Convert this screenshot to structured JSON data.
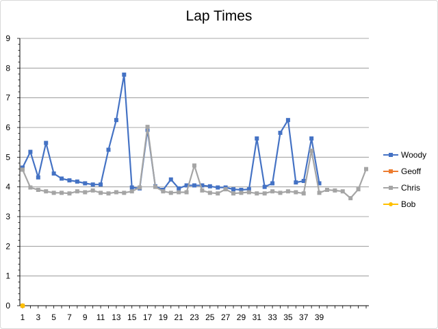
{
  "chart_data": {
    "type": "line",
    "title": "Lap Times",
    "xlabel": "",
    "ylabel": "",
    "ylim": [
      0,
      9
    ],
    "yticks": [
      0,
      1,
      2,
      3,
      4,
      5,
      6,
      7,
      8,
      9
    ],
    "xticks": [
      1,
      3,
      5,
      7,
      9,
      11,
      13,
      15,
      17,
      19,
      21,
      23,
      25,
      27,
      29,
      31,
      33,
      35,
      37,
      39
    ],
    "xrange": [
      1,
      45
    ],
    "grid": "horizontal",
    "legend_position": "right",
    "series": [
      {
        "name": "Woody",
        "color": "#4472C4",
        "marker": "square",
        "values": [
          4.65,
          5.18,
          4.32,
          5.48,
          4.45,
          4.28,
          4.22,
          4.18,
          4.12,
          4.08,
          4.08,
          5.25,
          6.25,
          7.78,
          3.98,
          3.95,
          5.92,
          4.02,
          3.9,
          4.25,
          3.95,
          4.05,
          4.05,
          4.05,
          4.02,
          3.98,
          3.98,
          3.92,
          3.9,
          3.92,
          5.63,
          4.0,
          4.12,
          5.82,
          6.25,
          4.15,
          4.2,
          5.63,
          4.12
        ]
      },
      {
        "name": "Geoff",
        "color": "#ED7D31",
        "marker": "square",
        "values": [
          0
        ]
      },
      {
        "name": "Chris",
        "color": "#A5A5A5",
        "marker": "square",
        "values": [
          4.58,
          3.98,
          3.9,
          3.85,
          3.8,
          3.8,
          3.78,
          3.85,
          3.82,
          3.88,
          3.8,
          3.78,
          3.82,
          3.8,
          3.85,
          3.98,
          6.02,
          4.0,
          3.85,
          3.8,
          3.82,
          3.82,
          4.72,
          3.88,
          3.8,
          3.78,
          3.92,
          3.78,
          3.8,
          3.82,
          3.78,
          3.78,
          3.85,
          3.8,
          3.85,
          3.82,
          3.78,
          5.22,
          3.8,
          3.9,
          3.88,
          3.85,
          3.62,
          3.92,
          4.6
        ]
      },
      {
        "name": "Bob",
        "color": "#FFC000",
        "marker": "circle",
        "values": [
          0
        ]
      }
    ]
  }
}
